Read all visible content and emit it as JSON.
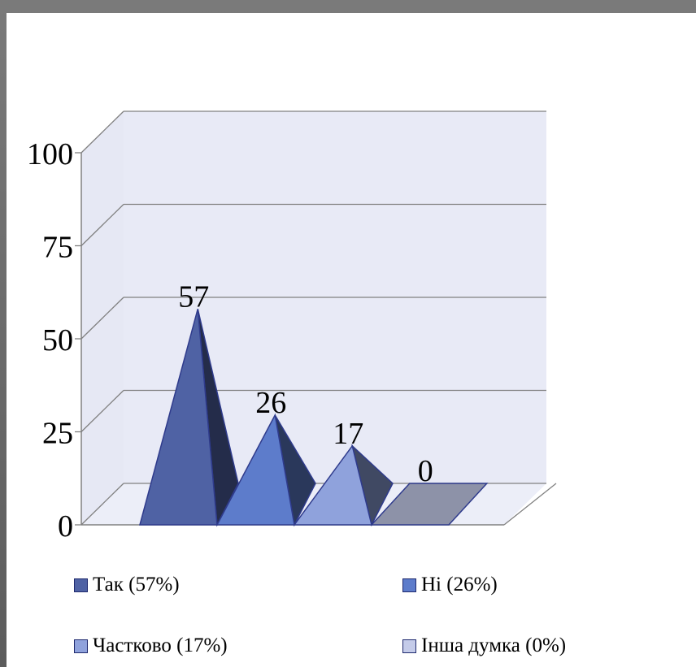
{
  "chart_data": {
    "type": "bar",
    "style": "3d-pyramid",
    "categories": [
      "Так (57%)",
      "Ні (26%)",
      "Частково (17%)",
      "Інша думка (0%)"
    ],
    "values": [
      57,
      26,
      17,
      0
    ],
    "data_labels": [
      "57",
      "26",
      "17",
      "0"
    ],
    "colors": [
      "#4f62a4",
      "#5d7ccb",
      "#8fa2dc",
      "#c4cbe9"
    ],
    "ylim": [
      0,
      100
    ],
    "yticks": [
      0,
      25,
      50,
      75,
      100
    ],
    "grid": true,
    "legend_position": "bottom",
    "title": "",
    "xlabel": "",
    "ylabel": ""
  }
}
